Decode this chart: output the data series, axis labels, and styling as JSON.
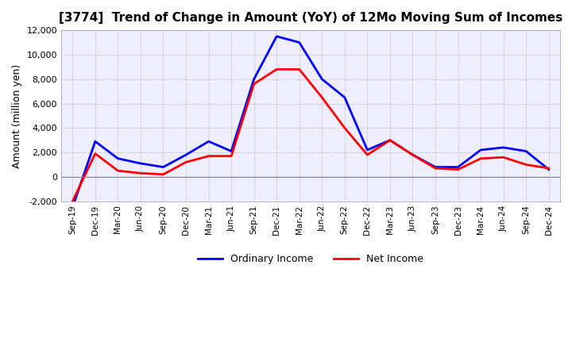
{
  "title": "[3774]  Trend of Change in Amount (YoY) of 12Mo Moving Sum of Incomes",
  "ylabel": "Amount (million yen)",
  "ylim": [
    -2000,
    12000
  ],
  "yticks": [
    -2000,
    0,
    2000,
    4000,
    6000,
    8000,
    10000,
    12000
  ],
  "x_labels": [
    "Sep-19",
    "Dec-19",
    "Mar-20",
    "Jun-20",
    "Sep-20",
    "Dec-20",
    "Mar-21",
    "Jun-21",
    "Sep-21",
    "Dec-21",
    "Mar-22",
    "Jun-22",
    "Sep-22",
    "Dec-22",
    "Mar-23",
    "Jun-23",
    "Sep-23",
    "Dec-23",
    "Mar-24",
    "Jun-24",
    "Sep-24",
    "Dec-24"
  ],
  "ordinary_income": [
    -2500,
    2900,
    1500,
    1100,
    800,
    1800,
    2900,
    2100,
    8000,
    11500,
    11000,
    8000,
    6500,
    2200,
    3000,
    1800,
    800,
    800,
    2200,
    2400,
    2100,
    600
  ],
  "net_income": [
    -2000,
    1900,
    500,
    300,
    200,
    1200,
    1700,
    1700,
    7600,
    8800,
    8800,
    6500,
    4000,
    1800,
    3000,
    1800,
    700,
    600,
    1500,
    1600,
    1000,
    700
  ],
  "ordinary_color": "#0000ff",
  "net_color": "#ff0000",
  "line_width": 2.0,
  "grid_color": "#aaaaaa",
  "plot_bg_color": "#eeeeff",
  "background_color": "#ffffff",
  "legend_ordinary": "Ordinary Income",
  "legend_net": "Net Income"
}
